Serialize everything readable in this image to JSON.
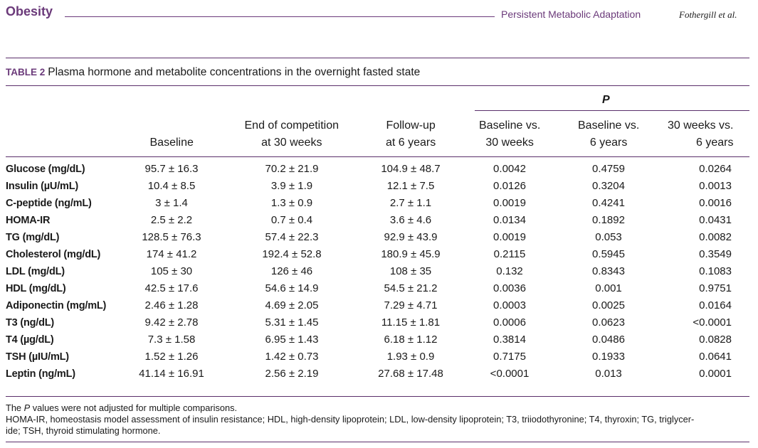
{
  "header": {
    "journal": "Obesity",
    "running_title": "Persistent Metabolic Adaptation",
    "authors": "Fothergill et al."
  },
  "table": {
    "label": "TABLE 2",
    "title": "Plasma hormone and metabolite concentrations in the overnight fasted state",
    "p_group": "P",
    "columns": [
      {
        "line1": "",
        "line2": "Baseline"
      },
      {
        "line1": "End of competition",
        "line2": "at 30 weeks"
      },
      {
        "line1": "Follow-up",
        "line2": "at 6 years"
      },
      {
        "line1": "Baseline vs.",
        "line2": "30 weeks"
      },
      {
        "line1": "Baseline vs.",
        "line2": "6 years"
      },
      {
        "line1": "30 weeks vs.",
        "line2": "6 years"
      }
    ],
    "rows": [
      {
        "label": "Glucose (mg/dL)",
        "cells": [
          "95.7 ± 16.3",
          "70.2 ± 21.9",
          "104.9 ± 48.7",
          "0.0042",
          "0.4759",
          "0.0264"
        ]
      },
      {
        "label": "Insulin (µU/mL)",
        "cells": [
          "10.4 ± 8.5",
          "3.9 ± 1.9",
          "12.1 ± 7.5",
          "0.0126",
          "0.3204",
          "0.0013"
        ]
      },
      {
        "label": "C-peptide (ng/mL)",
        "cells": [
          "3 ± 1.4",
          "1.3 ± 0.9",
          "2.7 ± 1.1",
          "0.0019",
          "0.4241",
          "0.0016"
        ]
      },
      {
        "label": "HOMA-IR",
        "cells": [
          "2.5 ± 2.2",
          "0.7 ± 0.4",
          "3.6 ± 4.6",
          "0.0134",
          "0.1892",
          "0.0431"
        ]
      },
      {
        "label": "TG (mg/dL)",
        "cells": [
          "128.5 ± 76.3",
          "57.4 ± 22.3",
          "92.9 ± 43.9",
          "0.0019",
          "0.053",
          "0.0082"
        ]
      },
      {
        "label": "Cholesterol (mg/dL)",
        "cells": [
          "174 ± 41.2",
          "192.4 ± 52.8",
          "180.9 ± 45.9",
          "0.2115",
          "0.5945",
          "0.3549"
        ]
      },
      {
        "label": "LDL (mg/dL)",
        "cells": [
          "105 ± 30",
          "126 ± 46",
          "108 ± 35",
          "0.132",
          "0.8343",
          "0.1083"
        ]
      },
      {
        "label": "HDL (mg/dL)",
        "cells": [
          "42.5 ± 17.6",
          "54.6 ± 14.9",
          "54.5 ± 21.2",
          "0.0036",
          "0.001",
          "0.9751"
        ]
      },
      {
        "label": "Adiponectin (mg/mL)",
        "cells": [
          "2.46 ± 1.28",
          "4.69 ± 2.05",
          "7.29 ± 4.71",
          "0.0003",
          "0.0025",
          "0.0164"
        ]
      },
      {
        "label": "T3 (ng/dL)",
        "cells": [
          "9.42 ± 2.78",
          "5.31 ± 1.45",
          "11.15 ± 1.81",
          "0.0006",
          "0.0623",
          "<0.0001"
        ]
      },
      {
        "label": "T4 (µg/dL)",
        "cells": [
          "7.3 ± 1.58",
          "6.95 ± 1.43",
          "6.18 ± 1.12",
          "0.3814",
          "0.0486",
          "0.0828"
        ]
      },
      {
        "label": "TSH (µIU/mL)",
        "cells": [
          "1.52 ± 1.26",
          "1.42 ± 0.73",
          "1.93 ± 0.9",
          "0.7175",
          "0.1933",
          "0.0641"
        ]
      },
      {
        "label": "Leptin (ng/mL)",
        "cells": [
          "41.14 ± 16.91",
          "2.56 ± 2.19",
          "27.68 ± 17.48",
          "<0.0001",
          "0.013",
          "0.0001"
        ]
      }
    ]
  },
  "footnotes": {
    "note1_prefix": "The ",
    "note1_p": "P",
    "note1_rest": " values were not adjusted for multiple comparisons.",
    "note2_line1": "HOMA-IR, homeostasis model assessment of insulin resistance; HDL, high-density lipoprotein; LDL, low-density lipoprotein; T3, triiodothyronine; T4, thyroxin; TG, triglycer-",
    "note2_line2": "ide; TSH, thyroid stimulating hormone."
  },
  "colors": {
    "accent": "#6b3a7a",
    "rule": "#5a2e6a"
  }
}
